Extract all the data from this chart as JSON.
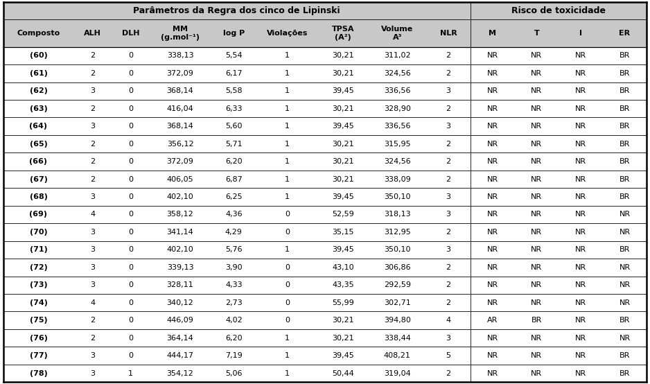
{
  "title_left": "Parâmetros da Regra dos cinco de Lipinski",
  "title_right": "Risco de toxicidade",
  "col_headers": [
    "Composto",
    "ALH",
    "DLH",
    "MM\n(g.mol⁻¹)",
    "log P",
    "Violações",
    "TPSA\n(A²)",
    "Volume\nA³",
    "NLR",
    "M",
    "T",
    "I",
    "ER"
  ],
  "rows": [
    [
      "(60)",
      "2",
      "0",
      "338,13",
      "5,54",
      "1",
      "30,21",
      "311,02",
      "2",
      "NR",
      "NR",
      "NR",
      "BR"
    ],
    [
      "(61)",
      "2",
      "0",
      "372,09",
      "6,17",
      "1",
      "30,21",
      "324,56",
      "2",
      "NR",
      "NR",
      "NR",
      "BR"
    ],
    [
      "(62)",
      "3",
      "0",
      "368,14",
      "5,58",
      "1",
      "39,45",
      "336,56",
      "3",
      "NR",
      "NR",
      "NR",
      "BR"
    ],
    [
      "(63)",
      "2",
      "0",
      "416,04",
      "6,33",
      "1",
      "30,21",
      "328,90",
      "2",
      "NR",
      "NR",
      "NR",
      "BR"
    ],
    [
      "(64)",
      "3",
      "0",
      "368,14",
      "5,60",
      "1",
      "39,45",
      "336,56",
      "3",
      "NR",
      "NR",
      "NR",
      "BR"
    ],
    [
      "(65)",
      "2",
      "0",
      "356,12",
      "5,71",
      "1",
      "30,21",
      "315,95",
      "2",
      "NR",
      "NR",
      "NR",
      "BR"
    ],
    [
      "(66)",
      "2",
      "0",
      "372,09",
      "6,20",
      "1",
      "30,21",
      "324,56",
      "2",
      "NR",
      "NR",
      "NR",
      "BR"
    ],
    [
      "(67)",
      "2",
      "0",
      "406,05",
      "6,87",
      "1",
      "30,21",
      "338,09",
      "2",
      "NR",
      "NR",
      "NR",
      "BR"
    ],
    [
      "(68)",
      "3",
      "0",
      "402,10",
      "6,25",
      "1",
      "39,45",
      "350,10",
      "3",
      "NR",
      "NR",
      "NR",
      "BR"
    ],
    [
      "(69)",
      "4",
      "0",
      "358,12",
      "4,36",
      "0",
      "52,59",
      "318,13",
      "3",
      "NR",
      "NR",
      "NR",
      "NR"
    ],
    [
      "(70)",
      "3",
      "0",
      "341,14",
      "4,29",
      "0",
      "35,15",
      "312,95",
      "2",
      "NR",
      "NR",
      "NR",
      "NR"
    ],
    [
      "(71)",
      "3",
      "0",
      "402,10",
      "5,76",
      "1",
      "39,45",
      "350,10",
      "3",
      "NR",
      "NR",
      "NR",
      "BR"
    ],
    [
      "(72)",
      "3",
      "0",
      "339,13",
      "3,90",
      "0",
      "43,10",
      "306,86",
      "2",
      "NR",
      "NR",
      "NR",
      "NR"
    ],
    [
      "(73)",
      "3",
      "0",
      "328,11",
      "4,33",
      "0",
      "43,35",
      "292,59",
      "2",
      "NR",
      "NR",
      "NR",
      "NR"
    ],
    [
      "(74)",
      "4",
      "0",
      "340,12",
      "2,73",
      "0",
      "55,99",
      "302,71",
      "2",
      "NR",
      "NR",
      "NR",
      "NR"
    ],
    [
      "(75)",
      "2",
      "0",
      "446,09",
      "4,02",
      "0",
      "30,21",
      "394,80",
      "4",
      "AR",
      "BR",
      "NR",
      "BR"
    ],
    [
      "(76)",
      "2",
      "0",
      "364,14",
      "6,20",
      "1",
      "30,21",
      "338,44",
      "3",
      "NR",
      "NR",
      "NR",
      "NR"
    ],
    [
      "(77)",
      "3",
      "0",
      "444,17",
      "7,19",
      "1",
      "39,45",
      "408,21",
      "5",
      "NR",
      "NR",
      "NR",
      "BR"
    ],
    [
      "(78)",
      "3",
      "1",
      "354,12",
      "5,06",
      "1",
      "50,44",
      "319,04",
      "2",
      "NR",
      "NR",
      "NR",
      "BR"
    ]
  ],
  "header_bg": "#c8c8c8",
  "figsize": [
    9.38,
    5.54
  ],
  "dpi": 100,
  "lipinski_span": 9,
  "col_widths_rel": [
    1.15,
    0.62,
    0.62,
    1.0,
    0.75,
    1.0,
    0.82,
    0.95,
    0.72,
    0.72,
    0.72,
    0.72,
    0.72
  ]
}
